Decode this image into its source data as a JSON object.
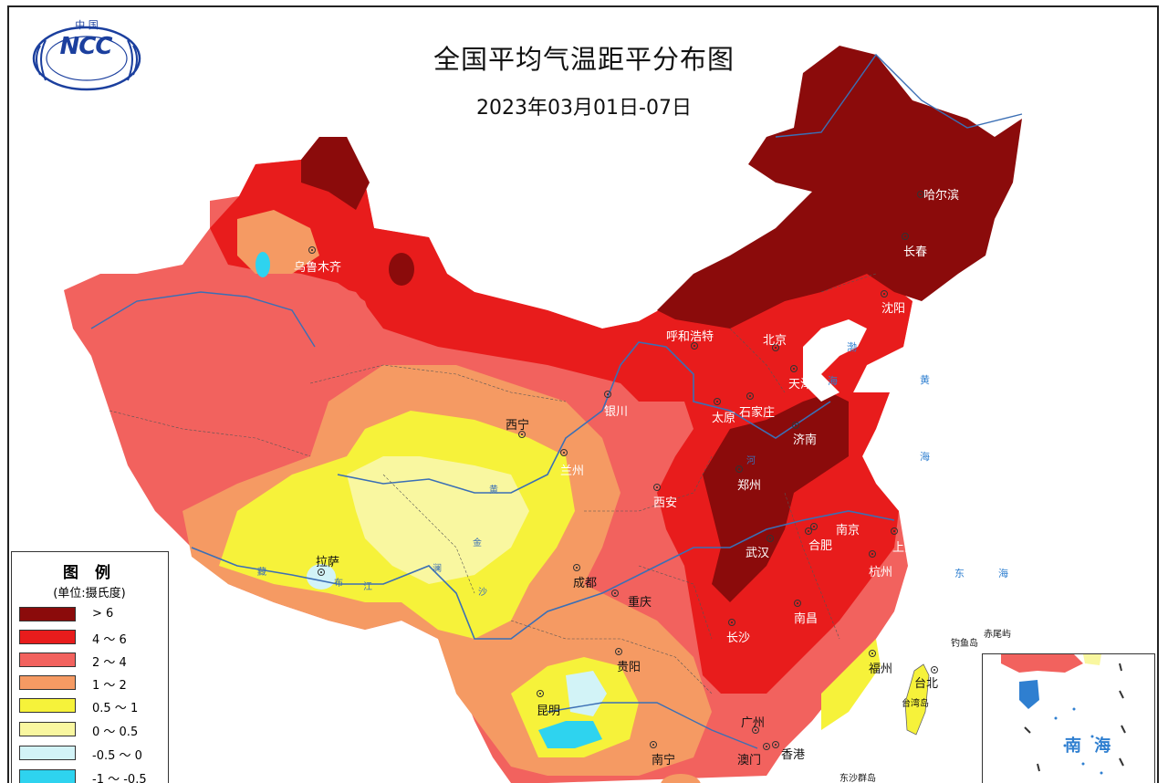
{
  "title": "全国平均气温距平分布图",
  "date_range": "2023年03月01日-07日",
  "logo": {
    "top_text": "中 国",
    "text": "NCC"
  },
  "legend": {
    "title": "图 例",
    "unit": "(单位:摄氏度)",
    "items": [
      {
        "label": "> 6",
        "color": "#8b0b0b"
      },
      {
        "label": "4 ～ 6",
        "color": "#e81c1c"
      },
      {
        "label": "2 ～ 4",
        "color": "#f2625e"
      },
      {
        "label": "1 ～ 2",
        "color": "#f59a63"
      },
      {
        "label": "0.5 ～ 1",
        "color": "#f6f23a"
      },
      {
        "label": "0 ～ 0.5",
        "color": "#f9f7a0"
      },
      {
        "label": "-0.5 ～ 0",
        "color": "#d2f3f7"
      },
      {
        "label": "-1 ～ -0.5",
        "color": "#2ed3ef"
      }
    ]
  },
  "cities": {
    "harbin": "哈尔滨",
    "changchun": "长春",
    "shenyang": "沈阳",
    "hohhot": "呼和浩特",
    "beijing": "北京",
    "tianjin": "天津",
    "shijiazhuang": "石家庄",
    "taiyuan": "太原",
    "jinan": "济南",
    "urumqi": "乌鲁木齐",
    "yinchuan": "银川",
    "xining": "西宁",
    "lanzhou": "兰州",
    "xian": "西安",
    "zhengzhou": "郑州",
    "nanjing": "南京",
    "hefei": "合肥",
    "shanghai": "上海",
    "hangzhou": "杭州",
    "wuhan": "武汉",
    "lhasa": "拉萨",
    "chengdu": "成都",
    "chongqing": "重庆",
    "changsha": "长沙",
    "nanchang": "南昌",
    "guiyang": "贵阳",
    "fuzhou": "福州",
    "taipei": "台北",
    "kunming": "昆明",
    "guangzhou": "广州",
    "nanning": "南宁",
    "macau": "澳门",
    "hongkong": "香港"
  },
  "seas": {
    "bohai": "渤",
    "bohai2": "海",
    "huang": "黄",
    "huang2": "海",
    "dong": "东",
    "dong2": "海",
    "nanhai": "南 海"
  },
  "islands": {
    "diaoyu": "钓鱼岛",
    "chiwei": "赤尾屿",
    "taiwan": "台湾岛",
    "dongsha": "东沙群岛"
  },
  "river_labels": {
    "huang": "黄",
    "he": "河",
    "jin": "金",
    "lan": "澜",
    "sha": "沙",
    "zang": "藏",
    "bu": "布",
    "jiang": "江"
  }
}
